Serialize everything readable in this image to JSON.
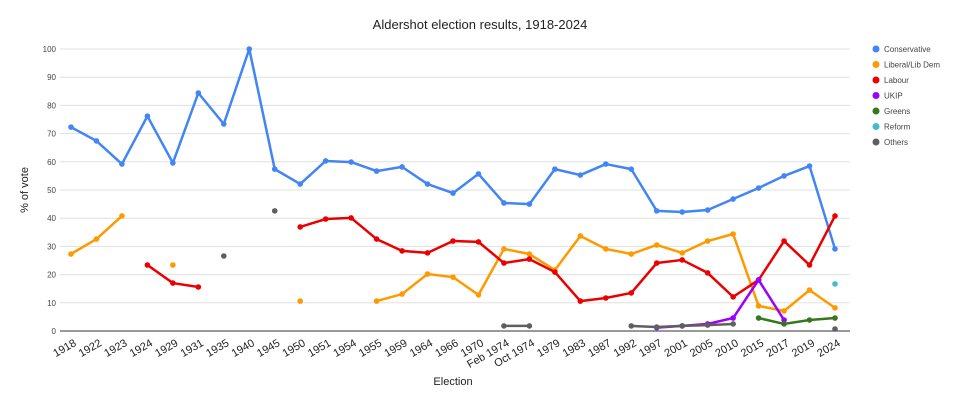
{
  "chart_data": {
    "type": "line",
    "title": "Aldershot election results, 1918-2024",
    "xlabel": "Election",
    "ylabel": "% of vote",
    "ylim": [
      0,
      100
    ],
    "yticks": [
      0,
      10,
      20,
      30,
      40,
      50,
      60,
      70,
      80,
      90,
      100
    ],
    "grid": true,
    "legend_position": "right",
    "categories": [
      "1918",
      "1922",
      "1923",
      "1924",
      "1929",
      "1931",
      "1935",
      "1940",
      "1945",
      "1950",
      "1951",
      "1954",
      "1955",
      "1959",
      "1964",
      "1966",
      "1970",
      "Feb 1974",
      "Oct 1974",
      "1979",
      "1983",
      "1987",
      "1992",
      "1997",
      "2001",
      "2005",
      "2010",
      "2015",
      "2017",
      "2019",
      "2024"
    ],
    "series": [
      {
        "name": "Conservative",
        "color": "#4285f4",
        "values": [
          72.3,
          67.4,
          59.2,
          76.2,
          59.6,
          84.4,
          73.4,
          100,
          57.4,
          52.1,
          60.3,
          59.9,
          56.7,
          58.2,
          52.1,
          48.9,
          55.7,
          45.4,
          45.0,
          57.4,
          55.3,
          59.2,
          57.4,
          42.6,
          42.2,
          42.9,
          46.8,
          50.7,
          55.0,
          58.5,
          29.1
        ]
      },
      {
        "name": "Liberal/Lib Dem",
        "color": "#ff9900",
        "values": [
          27.3,
          32.6,
          40.8,
          null,
          23.4,
          null,
          null,
          null,
          null,
          10.6,
          null,
          null,
          10.6,
          13.1,
          20.2,
          19.1,
          12.8,
          29.1,
          27.3,
          21.6,
          33.7,
          29.1,
          27.3,
          30.5,
          27.7,
          31.9,
          34.4,
          8.9,
          7.1,
          14.5,
          8.2
        ]
      },
      {
        "name": "Labour",
        "color": "#ea0000",
        "values": [
          null,
          null,
          null,
          23.4,
          17.0,
          15.6,
          null,
          null,
          null,
          36.9,
          39.7,
          40.1,
          32.6,
          28.4,
          27.7,
          31.9,
          31.6,
          24.1,
          25.5,
          20.9,
          10.6,
          11.7,
          13.5,
          24.1,
          25.2,
          20.6,
          12.1,
          18.1,
          31.9,
          23.4,
          40.8
        ]
      },
      {
        "name": "UKIP",
        "color": "#9900ff",
        "values": [
          null,
          null,
          null,
          null,
          null,
          null,
          null,
          null,
          null,
          null,
          null,
          null,
          null,
          null,
          null,
          null,
          null,
          null,
          null,
          null,
          null,
          null,
          null,
          1.2,
          1.8,
          2.5,
          4.6,
          18.1,
          3.9,
          null,
          null
        ]
      },
      {
        "name": "Greens",
        "color": "#38761d",
        "values": [
          null,
          null,
          null,
          null,
          null,
          null,
          null,
          null,
          null,
          null,
          null,
          null,
          null,
          null,
          null,
          null,
          null,
          null,
          null,
          null,
          null,
          null,
          null,
          null,
          null,
          null,
          null,
          4.6,
          2.5,
          3.9,
          4.6
        ]
      },
      {
        "name": "Reform",
        "color": "#46bdc6",
        "values": [
          null,
          null,
          null,
          null,
          null,
          null,
          null,
          null,
          null,
          null,
          null,
          null,
          null,
          null,
          null,
          null,
          null,
          null,
          null,
          null,
          null,
          null,
          null,
          null,
          null,
          null,
          null,
          null,
          null,
          null,
          16.7
        ]
      },
      {
        "name": "Others",
        "color": "#5f5f5f",
        "values": [
          null,
          null,
          null,
          null,
          null,
          null,
          26.6,
          null,
          42.6,
          null,
          null,
          null,
          null,
          null,
          null,
          null,
          null,
          1.8,
          1.8,
          null,
          null,
          null,
          1.8,
          1.4,
          1.8,
          2.1,
          2.5,
          null,
          null,
          null,
          0.7
        ]
      }
    ]
  }
}
